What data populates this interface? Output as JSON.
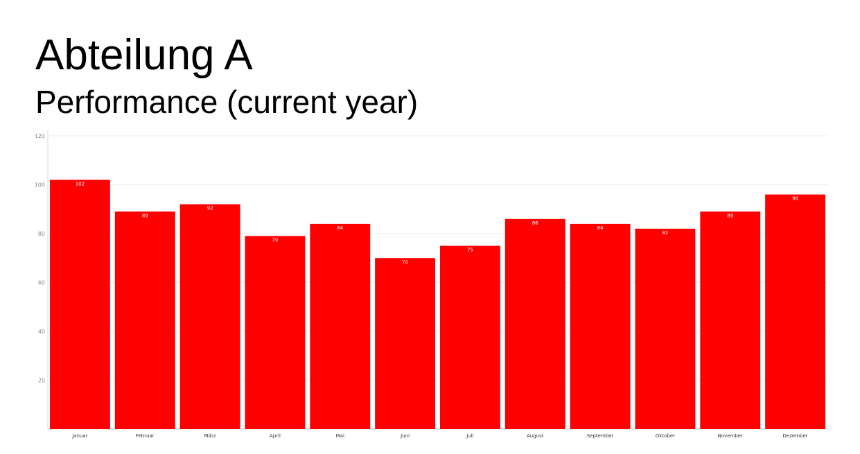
{
  "header": {
    "title": "Abteilung A",
    "subtitle": "Performance (current year)"
  },
  "chart_data": {
    "type": "bar",
    "title": "Abteilung A",
    "subtitle": "Performance (current year)",
    "categories": [
      "Januar",
      "Februar",
      "März",
      "April",
      "Mai",
      "Juni",
      "Juli",
      "August",
      "September",
      "Oktober",
      "November",
      "Dezember"
    ],
    "values": [
      102,
      89,
      92,
      79,
      84,
      70,
      75,
      86,
      84,
      82,
      89,
      96
    ],
    "yticks": [
      20,
      40,
      60,
      80,
      100,
      120
    ],
    "ylim": [
      0,
      120
    ],
    "grid": true,
    "legend": "none",
    "data_labels": true,
    "colors": {
      "bar": "#ff0000",
      "grid": "#eeeeee",
      "axis": "#d9d9d9",
      "label": "#ffffff"
    }
  }
}
